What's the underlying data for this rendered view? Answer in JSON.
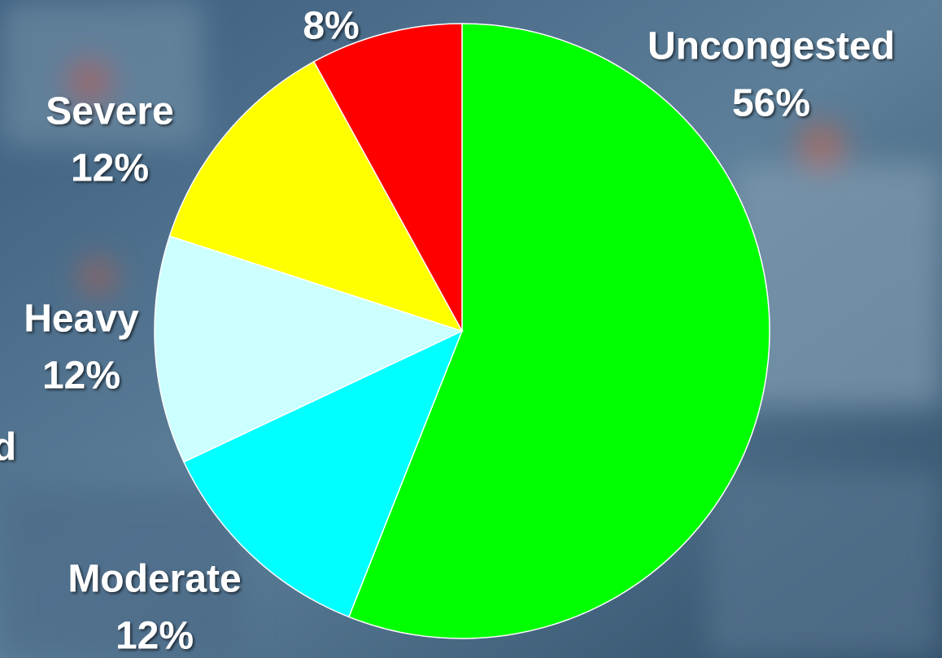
{
  "chart_data": {
    "type": "pie",
    "categories": [
      "Uncongested",
      "Moderate",
      "Heavy",
      "Severe",
      null
    ],
    "values": [
      56,
      12,
      12,
      12,
      8
    ],
    "value_labels": [
      "56%",
      "12%",
      "12%",
      "12%",
      "8%"
    ],
    "colors": [
      "#00ff00",
      "#00ffff",
      "#ccffff",
      "#ffff00",
      "#ff0000"
    ],
    "annotations": [
      "ed"
    ]
  }
}
